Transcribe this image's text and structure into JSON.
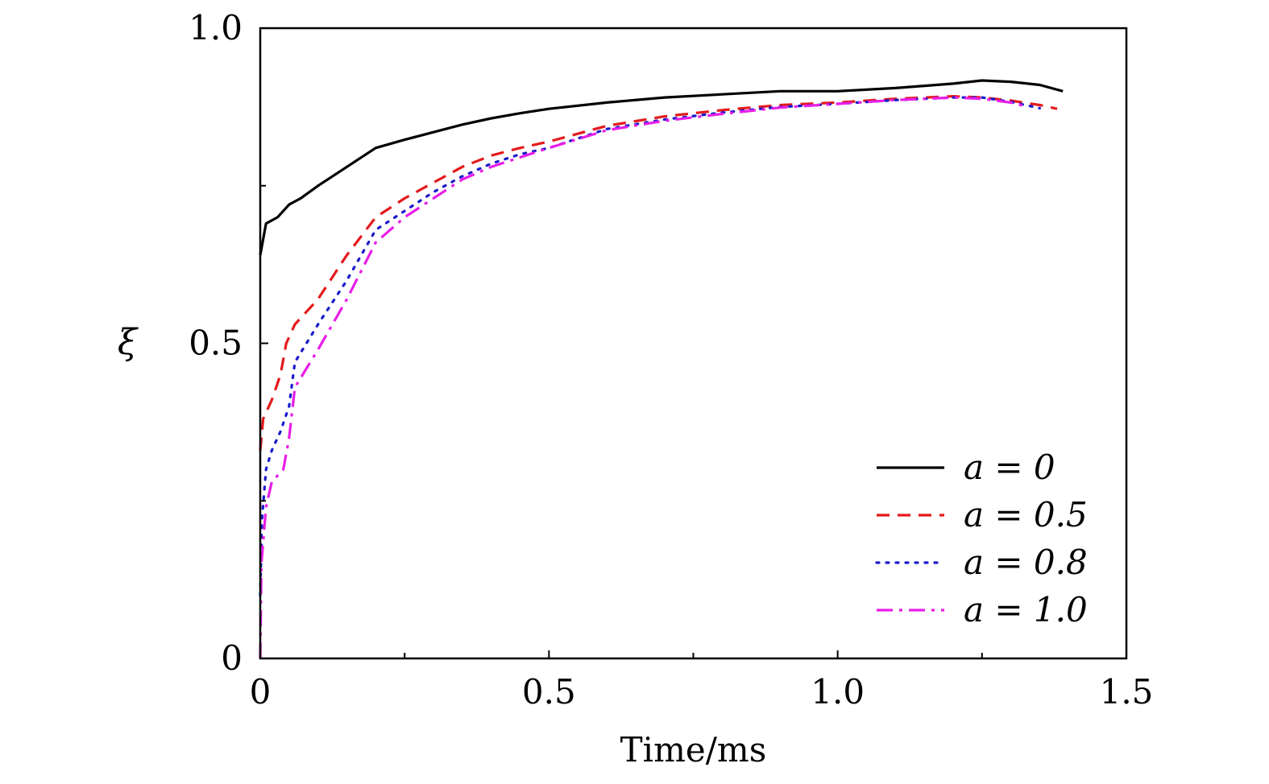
{
  "chart_data": {
    "type": "line",
    "title": "",
    "xlabel": "Time/ms",
    "ylabel": "ξ",
    "xlim": [
      0,
      1.5
    ],
    "ylim": [
      0,
      1.0
    ],
    "xticks": [
      0,
      0.5,
      1.0,
      1.5
    ],
    "xtick_labels": [
      "0",
      "0.5",
      "1.0",
      "1.5"
    ],
    "yticks": [
      0,
      0.5,
      1.0
    ],
    "ytick_labels": [
      "0",
      "0.5",
      "1.0"
    ],
    "grid": false,
    "legend_position": "bottom-right",
    "series": [
      {
        "name": "a = 0",
        "label": "a = 0",
        "color": "#000000",
        "dash": "solid",
        "x": [
          0,
          0.01,
          0.03,
          0.05,
          0.07,
          0.1,
          0.15,
          0.2,
          0.25,
          0.3,
          0.35,
          0.4,
          0.45,
          0.5,
          0.6,
          0.7,
          0.8,
          0.9,
          1.0,
          1.1,
          1.2,
          1.25,
          1.3,
          1.35,
          1.39
        ],
        "values": [
          0.64,
          0.69,
          0.7,
          0.72,
          0.73,
          0.75,
          0.78,
          0.81,
          0.823,
          0.835,
          0.847,
          0.857,
          0.865,
          0.872,
          0.882,
          0.89,
          0.895,
          0.9,
          0.9,
          0.905,
          0.912,
          0.917,
          0.915,
          0.91,
          0.9
        ]
      },
      {
        "name": "a = 0.5",
        "label": "a = 0.5",
        "color": "#e41a1c",
        "dash": "dashed",
        "x": [
          0,
          0.005,
          0.02,
          0.035,
          0.045,
          0.06,
          0.1,
          0.15,
          0.2,
          0.25,
          0.3,
          0.35,
          0.4,
          0.45,
          0.5,
          0.6,
          0.7,
          0.8,
          0.9,
          1.0,
          1.1,
          1.2,
          1.25,
          1.3,
          1.35,
          1.38
        ],
        "values": [
          0.33,
          0.38,
          0.41,
          0.45,
          0.5,
          0.53,
          0.57,
          0.64,
          0.7,
          0.73,
          0.755,
          0.78,
          0.798,
          0.81,
          0.82,
          0.845,
          0.86,
          0.87,
          0.878,
          0.882,
          0.888,
          0.892,
          0.89,
          0.885,
          0.878,
          0.872
        ]
      },
      {
        "name": "a = 0.8",
        "label": "a = 0.8",
        "color": "#1a1acc",
        "dash": "dotted",
        "x": [
          0,
          0.003,
          0.01,
          0.02,
          0.035,
          0.05,
          0.06,
          0.1,
          0.15,
          0.2,
          0.25,
          0.3,
          0.35,
          0.4,
          0.45,
          0.5,
          0.6,
          0.7,
          0.8,
          0.9,
          1.0,
          1.1,
          1.2,
          1.25,
          1.3,
          1.35
        ],
        "values": [
          0.1,
          0.22,
          0.3,
          0.33,
          0.36,
          0.4,
          0.47,
          0.53,
          0.6,
          0.68,
          0.71,
          0.74,
          0.765,
          0.785,
          0.8,
          0.81,
          0.84,
          0.855,
          0.866,
          0.875,
          0.88,
          0.886,
          0.89,
          0.89,
          0.883,
          0.873
        ]
      },
      {
        "name": "a = 1.0",
        "label": "a = 1.0",
        "color": "#e81ee8",
        "dash": "dashdot",
        "x": [
          0,
          0.002,
          0.01,
          0.02,
          0.04,
          0.05,
          0.06,
          0.1,
          0.15,
          0.2,
          0.25,
          0.3,
          0.35,
          0.4,
          0.45,
          0.5,
          0.6,
          0.7,
          0.8,
          0.9,
          1.0,
          1.1,
          1.2,
          1.25,
          1.3,
          1.33
        ],
        "values": [
          0.0,
          0.15,
          0.24,
          0.28,
          0.3,
          0.35,
          0.43,
          0.49,
          0.57,
          0.66,
          0.7,
          0.73,
          0.76,
          0.78,
          0.795,
          0.81,
          0.838,
          0.853,
          0.864,
          0.874,
          0.88,
          0.886,
          0.89,
          0.888,
          0.882,
          0.875
        ]
      }
    ]
  }
}
